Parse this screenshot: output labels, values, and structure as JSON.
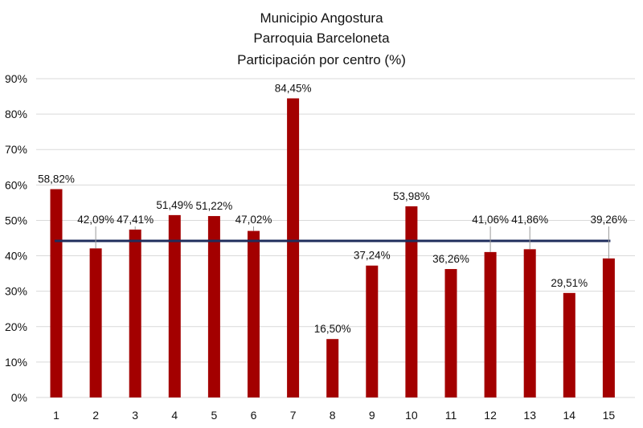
{
  "chart_data": {
    "type": "bar",
    "title": [
      "Municipio Angostura",
      "Parroquia Barceloneta",
      "Participación por centro (%)"
    ],
    "categories": [
      "1",
      "2",
      "3",
      "4",
      "5",
      "6",
      "7",
      "8",
      "9",
      "10",
      "11",
      "12",
      "13",
      "14",
      "15"
    ],
    "values": [
      58.82,
      42.09,
      47.41,
      51.49,
      51.22,
      47.02,
      84.45,
      16.5,
      37.24,
      53.98,
      36.26,
      41.06,
      41.86,
      29.51,
      39.26
    ],
    "data_labels": [
      "58,82%",
      "42,09%",
      "47,41%",
      "51,49%",
      "51,22%",
      "47,02%",
      "84,45%",
      "16,50%",
      "37,24%",
      "53,98%",
      "36,26%",
      "41,06%",
      "41,86%",
      "29,51%",
      "39,26%"
    ],
    "reference_line": {
      "value": 44.2
    },
    "ylim": [
      0,
      90
    ],
    "yticks": [
      0,
      10,
      20,
      30,
      40,
      50,
      60,
      70,
      80,
      90
    ],
    "ytick_labels": [
      "0%",
      "10%",
      "20%",
      "30%",
      "40%",
      "50%",
      "60%",
      "70%",
      "80%",
      "90%"
    ],
    "xlabel": "",
    "ylabel": "",
    "grid": true,
    "legend": "none",
    "colors": {
      "bar": "#a30000",
      "reference_line": "#1f2d5c",
      "grid": "#d9d9d9"
    }
  }
}
